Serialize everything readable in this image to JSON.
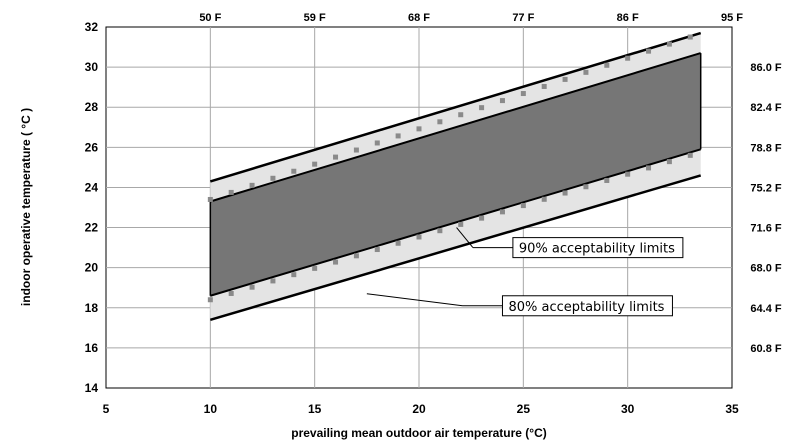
{
  "chart_data": {
    "type": "area",
    "xlabel": "prevailing mean outdoor air temperature (°C)",
    "ylabel": "indoor operative temperature ( °C )",
    "xlim": [
      5,
      35
    ],
    "ylim": [
      14,
      32
    ],
    "x_ticks": [
      "5",
      "10",
      "15",
      "20",
      "25",
      "30",
      "35"
    ],
    "y_ticks": [
      "14",
      "16",
      "18",
      "20",
      "22",
      "24",
      "26",
      "28",
      "30",
      "32"
    ],
    "top_axis_ticks": [
      {
        "x": 10,
        "label": "50 F"
      },
      {
        "x": 15,
        "label": "59 F"
      },
      {
        "x": 20,
        "label": "68 F"
      },
      {
        "x": 25,
        "label": "77 F"
      },
      {
        "x": 30,
        "label": "86 F"
      },
      {
        "x": 35,
        "label": "95 F"
      }
    ],
    "right_axis_ticks": [
      {
        "y": 16,
        "label": "60.8 F"
      },
      {
        "y": 18,
        "label": "64.4 F"
      },
      {
        "y": 20,
        "label": "68.0 F"
      },
      {
        "y": 22,
        "label": "71.6 F"
      },
      {
        "y": 24,
        "label": "75.2 F"
      },
      {
        "y": 26,
        "label": "78.8 F"
      },
      {
        "y": 28,
        "label": "82.4 F"
      },
      {
        "y": 30,
        "label": "86.0 F"
      }
    ],
    "grid": true,
    "bands": [
      {
        "name": "80% acceptability limits",
        "x": [
          10,
          33.5
        ],
        "upper": [
          24.3,
          31.7
        ],
        "lower": [
          17.4,
          24.6
        ],
        "color": "#e4e4e4"
      },
      {
        "name": "90% acceptability limits",
        "x": [
          10,
          33.5
        ],
        "upper": [
          23.3,
          30.7
        ],
        "lower": [
          18.6,
          25.9
        ],
        "color": "#767676"
      }
    ],
    "dotted_series": [
      {
        "x_start": 10,
        "x_end": 33,
        "y_start": 23.4,
        "y_end": 31.5
      },
      {
        "x_start": 10,
        "x_end": 33,
        "y_start": 18.4,
        "y_end": 25.6
      }
    ],
    "annotations": [
      {
        "text": "90% acceptability limits",
        "point": [
          21.8,
          22.0
        ],
        "label_at": [
          24.5,
          21.0
        ]
      },
      {
        "text": "80% acceptability limits",
        "point": [
          17.5,
          18.7
        ],
        "label_at": [
          24.0,
          18.1
        ]
      }
    ]
  }
}
